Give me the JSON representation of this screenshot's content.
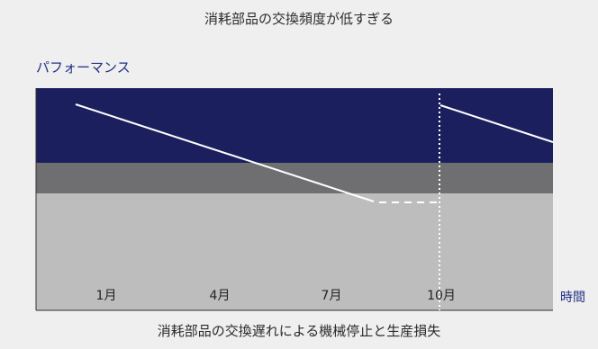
{
  "diagram": {
    "title": "消耗部品の交換頻度が低すぎる",
    "y_axis_label": "パフォーマンス",
    "x_axis_unit": "時間",
    "x_tick_labels": [
      "1月",
      "4月",
      "7月",
      "10月"
    ],
    "caption": "消耗部品の交換遅れによる機械停止と生産損失",
    "colors": {
      "top_band": "#1b1f5e",
      "middle_band": "#6f6f71",
      "bottom_band": "#bdbdbe",
      "performance_line": "#ffffff",
      "title_accent": "#1f2f86"
    }
  }
}
